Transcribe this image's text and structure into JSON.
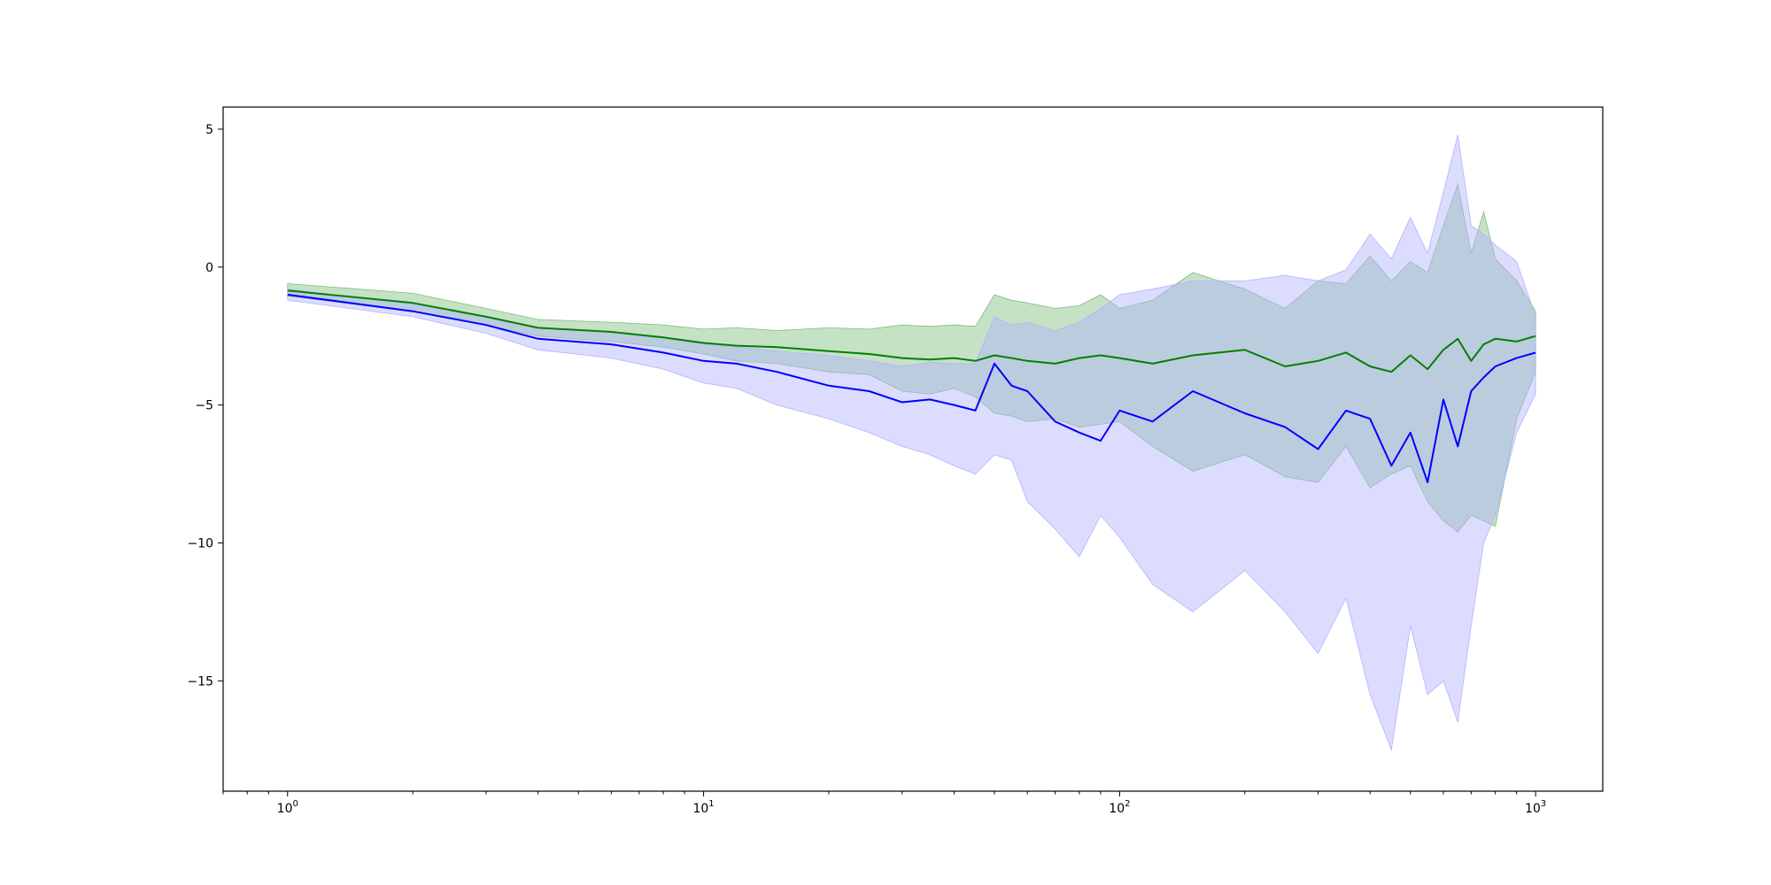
{
  "chart_data": {
    "type": "line",
    "title": "",
    "xlabel": "",
    "ylabel": "",
    "xscale": "log",
    "xlim": [
      0.7,
      1450
    ],
    "ylim": [
      -19,
      5.8
    ],
    "grid": false,
    "legend": "none",
    "x_ticks": [
      {
        "value": 1,
        "base": "10",
        "exp": "0"
      },
      {
        "value": 10,
        "base": "10",
        "exp": "1"
      },
      {
        "value": 100,
        "base": "10",
        "exp": "2"
      },
      {
        "value": 1000,
        "base": "10",
        "exp": "3"
      }
    ],
    "y_ticks": [
      {
        "value": 5,
        "label": "5"
      },
      {
        "value": 0,
        "label": "0"
      },
      {
        "value": -5,
        "label": "−5"
      },
      {
        "value": -10,
        "label": "−10"
      },
      {
        "value": -15,
        "label": "−15"
      }
    ],
    "x": [
      1,
      2,
      3,
      4,
      6,
      8,
      10,
      12,
      15,
      20,
      25,
      30,
      35,
      40,
      45,
      50,
      55,
      60,
      70,
      80,
      90,
      100,
      120,
      150,
      200,
      250,
      300,
      350,
      400,
      450,
      500,
      550,
      600,
      650,
      700,
      750,
      800,
      900,
      1000
    ],
    "series": [
      {
        "color": "#008000",
        "band_color": "#7fbf7f",
        "mean": [
          -0.85,
          -1.3,
          -1.8,
          -2.2,
          -2.35,
          -2.55,
          -2.75,
          -2.85,
          -2.9,
          -3.05,
          -3.15,
          -3.3,
          -3.35,
          -3.3,
          -3.4,
          -3.2,
          -3.3,
          -3.4,
          -3.5,
          -3.3,
          -3.2,
          -3.3,
          -3.5,
          -3.2,
          -3.0,
          -3.6,
          -3.4,
          -3.1,
          -3.6,
          -3.8,
          -3.2,
          -3.7,
          -3.0,
          -2.6,
          -3.4,
          -2.8,
          -2.6,
          -2.7,
          -2.5
        ],
        "upper": [
          -0.6,
          -0.95,
          -1.5,
          -1.9,
          -2.0,
          -2.1,
          -2.25,
          -2.2,
          -2.3,
          -2.2,
          -2.25,
          -2.1,
          -2.15,
          -2.1,
          -2.15,
          -1.0,
          -1.2,
          -1.3,
          -1.5,
          -1.4,
          -1.0,
          -1.5,
          -1.2,
          -0.2,
          -0.8,
          -1.5,
          -0.5,
          -0.6,
          0.4,
          -0.5,
          0.2,
          -0.2,
          1.5,
          3.0,
          0.5,
          2.0,
          0.3,
          -0.5,
          -1.6
        ],
        "lower": [
          -1.05,
          -1.6,
          -2.1,
          -2.5,
          -2.7,
          -2.9,
          -3.15,
          -3.4,
          -3.5,
          -3.8,
          -3.9,
          -4.5,
          -4.6,
          -4.4,
          -4.7,
          -5.3,
          -5.4,
          -5.6,
          -5.5,
          -5.8,
          -5.7,
          -5.6,
          -6.5,
          -7.4,
          -6.8,
          -7.6,
          -7.8,
          -6.5,
          -8.0,
          -7.5,
          -7.2,
          -8.5,
          -9.2,
          -9.6,
          -9.0,
          -9.2,
          -9.4,
          -5.5,
          -3.8
        ]
      },
      {
        "color": "#0000ff",
        "band_color": "#b2b2ff",
        "mean": [
          -1.0,
          -1.6,
          -2.1,
          -2.6,
          -2.8,
          -3.1,
          -3.4,
          -3.5,
          -3.8,
          -4.3,
          -4.5,
          -4.9,
          -4.8,
          -5.0,
          -5.2,
          -3.5,
          -4.3,
          -4.5,
          -5.6,
          -6.0,
          -6.3,
          -5.2,
          -5.6,
          -4.5,
          -5.3,
          -5.8,
          -6.6,
          -5.2,
          -5.5,
          -7.2,
          -6.0,
          -7.8,
          -4.8,
          -6.5,
          -4.5,
          -4.0,
          -3.6,
          -3.3,
          -3.1
        ],
        "lower": [
          -1.2,
          -1.8,
          -2.4,
          -3.0,
          -3.3,
          -3.7,
          -4.2,
          -4.4,
          -5.0,
          -5.5,
          -6.0,
          -6.5,
          -6.8,
          -7.2,
          -7.5,
          -6.8,
          -7.0,
          -8.5,
          -9.5,
          -10.5,
          -9.0,
          -9.8,
          -11.5,
          -12.5,
          -11.0,
          -12.5,
          -14.0,
          -12.0,
          -15.5,
          -17.5,
          -13.0,
          -15.5,
          -15.0,
          -16.5,
          -13.0,
          -10.0,
          -9.0,
          -6.0,
          -4.6
        ],
        "upper": [
          -0.8,
          -1.35,
          -1.8,
          -2.2,
          -2.35,
          -2.55,
          -2.8,
          -2.9,
          -3.05,
          -3.2,
          -3.4,
          -3.6,
          -3.45,
          -3.5,
          -3.5,
          -1.8,
          -2.1,
          -2.0,
          -2.3,
          -2.0,
          -1.5,
          -1.0,
          -0.8,
          -0.5,
          -0.5,
          -0.3,
          -0.5,
          -0.1,
          1.2,
          0.3,
          1.8,
          0.5,
          2.7,
          4.8,
          1.5,
          1.2,
          0.8,
          0.2,
          -1.8
        ]
      }
    ]
  }
}
